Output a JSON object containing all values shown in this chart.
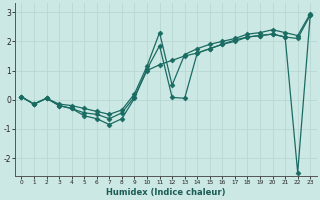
{
  "xlabel": "Humidex (Indice chaleur)",
  "bg_color": "#cce8e4",
  "grid_color": "#b8d8d4",
  "line_color": "#1a6b62",
  "x_ticks": [
    0,
    1,
    2,
    3,
    4,
    5,
    6,
    7,
    8,
    9,
    10,
    11,
    12,
    13,
    14,
    15,
    16,
    17,
    18,
    19,
    20,
    21,
    22,
    23
  ],
  "ylim": [
    -2.6,
    3.3
  ],
  "xlim": [
    -0.5,
    23.5
  ],
  "marker": "D",
  "markersize": 2.5,
  "linewidth": 0.9,
  "yticks": [
    -2,
    -1,
    0,
    1,
    2,
    3
  ],
  "series": [
    [
      0.1,
      -0.15,
      0.05,
      -0.2,
      -0.3,
      -0.55,
      -0.65,
      -0.85,
      -0.65,
      0.05,
      1.05,
      1.85,
      0.08,
      0.05,
      1.6,
      1.75,
      1.9,
      2.05,
      2.15,
      2.2,
      2.25,
      2.15,
      -2.5,
      2.9
    ],
    [
      0.1,
      -0.15,
      0.05,
      -0.2,
      -0.3,
      -0.45,
      -0.5,
      -0.65,
      -0.45,
      0.1,
      1.0,
      1.2,
      1.35,
      1.5,
      1.6,
      1.75,
      1.9,
      2.0,
      2.15,
      2.2,
      2.25,
      2.15,
      2.1,
      2.9
    ],
    [
      0.1,
      -0.15,
      0.05,
      -0.15,
      -0.2,
      -0.3,
      -0.4,
      -0.5,
      -0.35,
      0.2,
      1.15,
      2.3,
      0.5,
      1.55,
      1.75,
      1.9,
      2.0,
      2.1,
      2.25,
      2.3,
      2.4,
      2.3,
      2.2,
      2.95
    ]
  ]
}
